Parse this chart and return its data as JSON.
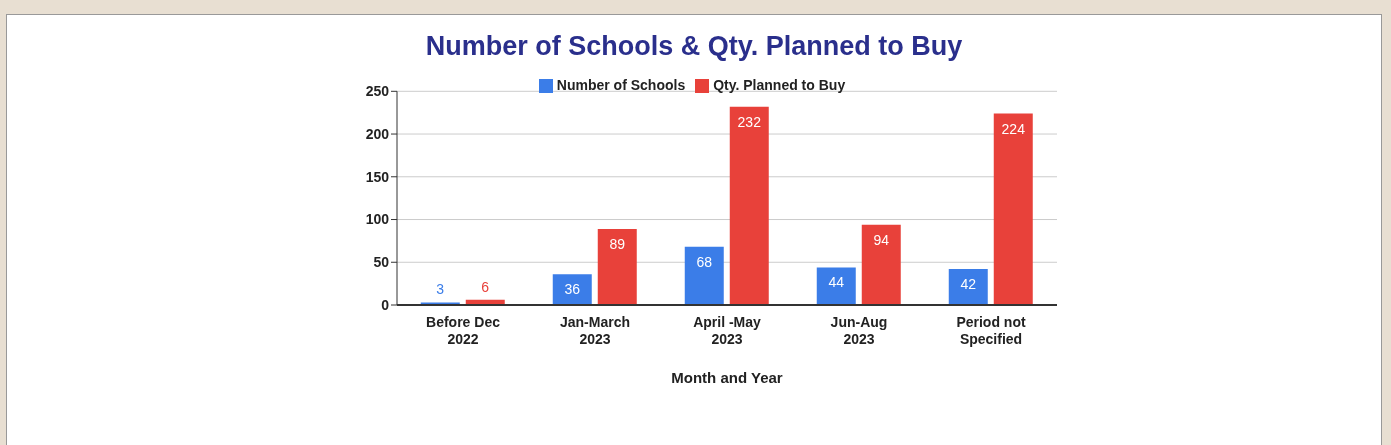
{
  "chart_data": {
    "type": "bar",
    "title": "Number of Schools & Qty. Planned to Buy",
    "xlabel": "Month and Year",
    "categories": [
      "Before Dec 2022",
      "Jan-March 2023",
      "April -May 2023",
      "Jun-Aug 2023",
      "Period not Specified"
    ],
    "series": [
      {
        "name": "Number of Schools",
        "color": "#3b7de8",
        "values": [
          3,
          36,
          68,
          44,
          42
        ]
      },
      {
        "name": "Qty. Planned to Buy",
        "color": "#e8413a",
        "values": [
          6,
          89,
          232,
          94,
          224
        ]
      }
    ],
    "ylim": [
      0,
      250
    ],
    "yticks": [
      0,
      50,
      100,
      150,
      200,
      250
    ],
    "grid": "y",
    "legend": "top",
    "data_labels": true
  }
}
